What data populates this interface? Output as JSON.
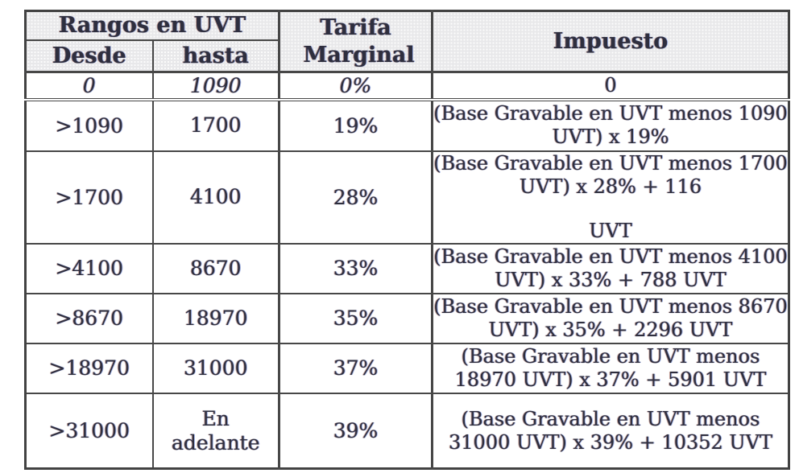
{
  "table": {
    "header": {
      "rangos": "Rangos en UVT",
      "desde": "Desde",
      "hasta": "hasta",
      "tarifa_marginal": "Tarifa Marginal",
      "impuesto": "Impuesto"
    },
    "rows": [
      {
        "desde": "0",
        "hasta": "1090",
        "tarifa": "0%",
        "impuesto": [
          "0"
        ],
        "italic": true
      },
      {
        "desde": ">1090",
        "hasta": "1700",
        "tarifa": "19%",
        "impuesto": [
          "(Base Gravable en UVT menos 1090 UVT) x 19%"
        ],
        "italic": false
      },
      {
        "desde": ">1700",
        "hasta": "4100",
        "tarifa": "28%",
        "impuesto": [
          "(Base Gravable en UVT menos 1700 UVT) x 28% + 116",
          "UVT"
        ],
        "italic": false
      },
      {
        "desde": ">4100",
        "hasta": "8670",
        "tarifa": "33%",
        "impuesto": [
          "(Base Gravable en UVT menos 4100 UVT) x 33% + 788 UVT"
        ],
        "italic": false
      },
      {
        "desde": ">8670",
        "hasta": "18970",
        "tarifa": "35%",
        "impuesto": [
          "(Base Gravable en UVT menos 8670 UVT) x 35% + 2296 UVT"
        ],
        "italic": false
      },
      {
        "desde": ">18970",
        "hasta": "31000",
        "tarifa": "37%",
        "impuesto": [
          "(Base Gravable en UVT menos 18970 UVT) x 37% + 5901 UVT"
        ],
        "italic": false
      },
      {
        "desde": ">31000",
        "hasta": "En adelante",
        "tarifa": "39%",
        "impuesto": [
          "(Base Gravable en UVT menos 31000 UVT) x 39% + 10352 UVT"
        ],
        "italic": false
      }
    ],
    "colors": {
      "border": "#474747",
      "header_background": "#e8e8ea",
      "text": "#2e2e3e",
      "page_background": "#ffffff"
    }
  }
}
